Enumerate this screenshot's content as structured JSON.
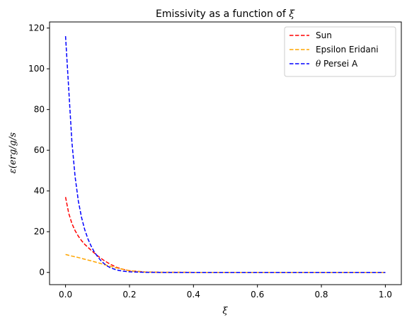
{
  "chart_data": {
    "type": "line",
    "title": "Emissivity as a function of ",
    "title_symbol": "ξ",
    "xlabel": "ξ",
    "ylabel": "ε(erg/g/s",
    "xlim": [
      -0.05,
      1.05
    ],
    "ylim": [
      -6,
      123
    ],
    "xticks": [
      0.0,
      0.2,
      0.4,
      0.6,
      0.8,
      1.0
    ],
    "xtick_labels": [
      "0.0",
      "0.2",
      "0.4",
      "0.6",
      "0.8",
      "1.0"
    ],
    "yticks": [
      0,
      20,
      40,
      60,
      80,
      100,
      120
    ],
    "ytick_labels": [
      "0",
      "20",
      "40",
      "60",
      "80",
      "100",
      "120"
    ],
    "grid": false,
    "legend_position": "top-right",
    "line_style": "dashed",
    "series": [
      {
        "name": "Sun",
        "color": "#ff0000",
        "x": [
          0.0,
          0.01,
          0.02,
          0.03,
          0.04,
          0.05,
          0.06,
          0.08,
          0.1,
          0.12,
          0.14,
          0.16,
          0.18,
          0.2,
          0.25,
          0.3,
          0.4,
          0.5,
          0.6,
          0.7,
          0.8,
          0.9,
          1.0
        ],
        "values": [
          37,
          29,
          24,
          20.5,
          17.8,
          15.6,
          13.8,
          10.9,
          8.2,
          5.9,
          4.0,
          2.5,
          1.5,
          0.8,
          0.2,
          0.05,
          0,
          0,
          0,
          0,
          0,
          0,
          0
        ]
      },
      {
        "name": "Epsilon Eridani",
        "color": "#ffa500",
        "x": [
          0.0,
          0.02,
          0.04,
          0.06,
          0.08,
          0.1,
          0.12,
          0.14,
          0.16,
          0.18,
          0.2,
          0.22,
          0.25,
          0.3,
          0.4,
          0.5,
          0.6,
          0.7,
          0.8,
          0.9,
          1.0
        ],
        "values": [
          8.8,
          8.0,
          7.3,
          6.5,
          5.7,
          4.8,
          3.9,
          3.0,
          2.2,
          1.5,
          0.9,
          0.5,
          0.2,
          0.05,
          0,
          0,
          0,
          0,
          0,
          0,
          0
        ]
      },
      {
        "name": "θ Persei A",
        "color": "#0000ff",
        "x": [
          0.0,
          0.01,
          0.02,
          0.03,
          0.04,
          0.05,
          0.06,
          0.07,
          0.08,
          0.09,
          0.1,
          0.11,
          0.12,
          0.13,
          0.14,
          0.16,
          0.18,
          0.2,
          0.25,
          0.3,
          0.4,
          0.5,
          0.6,
          0.7,
          0.8,
          0.9,
          1.0
        ],
        "values": [
          116,
          90,
          64,
          47,
          35,
          27,
          21,
          16.5,
          13,
          10,
          7.8,
          5.9,
          4.4,
          3.2,
          2.3,
          1.2,
          0.6,
          0.3,
          0.05,
          0,
          0,
          0,
          0,
          0,
          0,
          0,
          0
        ]
      }
    ]
  }
}
